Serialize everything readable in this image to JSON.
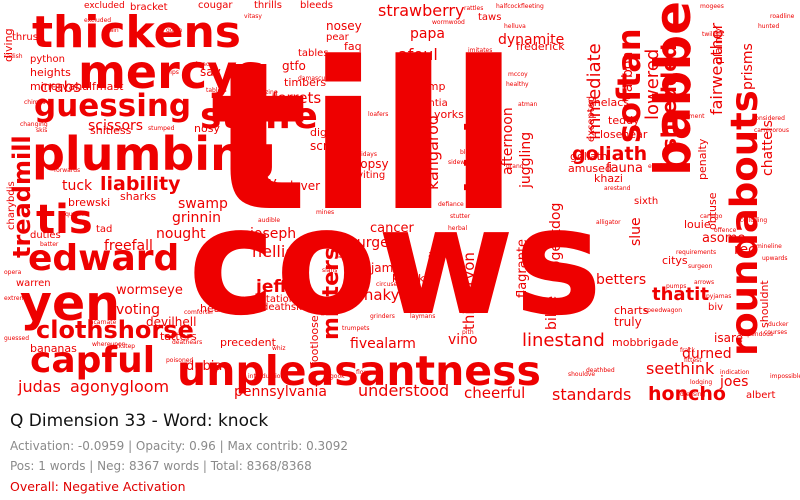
{
  "colors": {
    "cloud": "#ee0000",
    "negative": "#e00000",
    "title": "#111111",
    "info": "#8a8a8a"
  },
  "title": "Q Dimension 33 - Word: knock",
  "stats_line": "Activation: -0.0959 | Opacity: 0.96 | Max contrib: 0.3092",
  "counts_line": "Pos: 1 words | Neg: 8367 words | Total: 8368/8368",
  "overall": "Overall: Negative Activation",
  "words": [
    {
      "text": "till"
    },
    {
      "text": "cows"
    },
    {
      "text": "thickens"
    },
    {
      "text": "mercys"
    },
    {
      "text": "plumbing"
    },
    {
      "text": "guessing"
    },
    {
      "text": "stuffe"
    },
    {
      "text": "babber"
    },
    {
      "text": "roundabouts"
    },
    {
      "text": "unpleasantness"
    },
    {
      "text": "capful"
    },
    {
      "text": "yen"
    },
    {
      "text": "tis"
    },
    {
      "text": "edward"
    },
    {
      "text": "treadmill"
    },
    {
      "text": "softan"
    },
    {
      "text": "bighty"
    },
    {
      "text": "clothshorse"
    },
    {
      "text": "liability"
    },
    {
      "text": "misters"
    },
    {
      "text": "strawberry"
    },
    {
      "text": "shredded"
    },
    {
      "text": "lowered"
    },
    {
      "text": "immediate"
    },
    {
      "text": "goliath"
    },
    {
      "text": "linestand"
    },
    {
      "text": "standards"
    },
    {
      "text": "understood"
    },
    {
      "text": "cheerful"
    },
    {
      "text": "pennsylvania"
    },
    {
      "text": "agonygloom"
    },
    {
      "text": "judas"
    },
    {
      "text": "seethink"
    },
    {
      "text": "honcho"
    },
    {
      "text": "thatit"
    },
    {
      "text": "fairweather"
    },
    {
      "text": "prisms"
    },
    {
      "text": "chattels"
    },
    {
      "text": "plainly"
    },
    {
      "text": "fancyfree"
    },
    {
      "text": "thitheryon"
    },
    {
      "text": "kangaroo"
    },
    {
      "text": "afternoon"
    },
    {
      "text": "juggling"
    },
    {
      "text": "dynamite"
    },
    {
      "text": "papa"
    },
    {
      "text": "afoul"
    },
    {
      "text": "crabs"
    },
    {
      "text": "ferrets"
    },
    {
      "text": "scissors"
    },
    {
      "text": "swamp"
    },
    {
      "text": "tuck"
    },
    {
      "text": "batty"
    },
    {
      "text": "jeff"
    },
    {
      "text": "nellie"
    },
    {
      "text": "joseph"
    },
    {
      "text": "snaky"
    },
    {
      "text": "purge"
    },
    {
      "text": "pajamas"
    },
    {
      "text": "vino"
    },
    {
      "text": "fivealarm"
    },
    {
      "text": "voting"
    },
    {
      "text": "wormseye"
    },
    {
      "text": "freefall"
    },
    {
      "text": "nought"
    },
    {
      "text": "grinnin"
    },
    {
      "text": "durned"
    },
    {
      "text": "joes"
    },
    {
      "text": "bilge"
    },
    {
      "text": "slue"
    },
    {
      "text": "betters"
    },
    {
      "text": "asome"
    },
    {
      "text": "rec"
    },
    {
      "text": "fauna"
    },
    {
      "text": "carbon"
    },
    {
      "text": "dogeatdog"
    },
    {
      "text": "flagrante"
    },
    {
      "text": "cancer"
    },
    {
      "text": "heights"
    },
    {
      "text": "minervahalfmast"
    },
    {
      "text": "scram"
    },
    {
      "text": "digits"
    },
    {
      "text": "slew"
    },
    {
      "text": "lover"
    },
    {
      "text": "dropsy"
    },
    {
      "text": "inviting"
    },
    {
      "text": "gtfo"
    },
    {
      "text": "timbers"
    },
    {
      "text": "paragon"
    },
    {
      "text": "nosey"
    },
    {
      "text": "faq"
    },
    {
      "text": "pear"
    },
    {
      "text": "tables"
    },
    {
      "text": "sav"
    },
    {
      "text": "thrills"
    },
    {
      "text": "bleeds"
    },
    {
      "text": "cougar"
    },
    {
      "text": "bracket"
    },
    {
      "text": "excluded"
    },
    {
      "text": "shitless"
    },
    {
      "text": "tatters"
    },
    {
      "text": "dubia"
    },
    {
      "text": "bananas"
    },
    {
      "text": "devilhell"
    },
    {
      "text": "heal"
    },
    {
      "text": "precedent"
    },
    {
      "text": "expectations"
    },
    {
      "text": "frederick"
    },
    {
      "text": "taws"
    },
    {
      "text": "goliath"
    },
    {
      "text": "closenear"
    },
    {
      "text": "amused"
    },
    {
      "text": "khazi"
    },
    {
      "text": "teddy"
    },
    {
      "text": "truly"
    },
    {
      "text": "charts"
    },
    {
      "text": "isare"
    },
    {
      "text": "mobbrigade"
    },
    {
      "text": "albert"
    },
    {
      "text": "shouldnt"
    },
    {
      "text": "obtuse"
    },
    {
      "text": "penalty"
    },
    {
      "text": "louie"
    },
    {
      "text": "sixth"
    },
    {
      "text": "citys"
    },
    {
      "text": "shelacs"
    },
    {
      "text": "damp"
    },
    {
      "text": "yorks"
    },
    {
      "text": "potentia"
    },
    {
      "text": "diving"
    },
    {
      "text": "thrust"
    },
    {
      "text": "python"
    },
    {
      "text": "warren"
    },
    {
      "text": "tad"
    },
    {
      "text": "duties"
    },
    {
      "text": "charybdis"
    },
    {
      "text": "brewski"
    },
    {
      "text": "sharks"
    },
    {
      "text": "soda"
    },
    {
      "text": "deathskill"
    },
    {
      "text": "nosy"
    },
    {
      "text": "ale"
    },
    {
      "text": "knocks"
    },
    {
      "text": "footloose"
    },
    {
      "text": "excepted"
    },
    {
      "text": "biv"
    }
  ],
  "tiny_words": [
    {
      "text": "excluded"
    },
    {
      "text": "vain"
    },
    {
      "text": "gown"
    },
    {
      "text": "grips"
    },
    {
      "text": "braces"
    },
    {
      "text": "vitasy"
    },
    {
      "text": "tablets"
    },
    {
      "text": "wormwood"
    },
    {
      "text": "rattles"
    },
    {
      "text": "halfcockfleeting"
    },
    {
      "text": "mogees"
    },
    {
      "text": "roadline"
    },
    {
      "text": "radish"
    },
    {
      "text": "chimps"
    },
    {
      "text": "changing"
    },
    {
      "text": "skis"
    },
    {
      "text": "stumped"
    },
    {
      "text": "forwards"
    },
    {
      "text": "squeak"
    },
    {
      "text": "batter"
    },
    {
      "text": "opera"
    },
    {
      "text": "extreme"
    },
    {
      "text": "guessed"
    },
    {
      "text": "whereupon"
    },
    {
      "text": "lockstep"
    },
    {
      "text": "deathears"
    },
    {
      "text": "poisoned"
    },
    {
      "text": "flowers"
    },
    {
      "text": "gook"
    },
    {
      "text": "whiz"
    },
    {
      "text": "introduction"
    },
    {
      "text": "trumpets"
    },
    {
      "text": "grinders"
    },
    {
      "text": "laymans"
    },
    {
      "text": "healthy"
    },
    {
      "text": "anxiety"
    },
    {
      "text": "stutter"
    },
    {
      "text": "defiance"
    },
    {
      "text": "helluva"
    },
    {
      "text": "daddys"
    },
    {
      "text": "imitates"
    },
    {
      "text": "sorrow"
    },
    {
      "text": "mccoy"
    },
    {
      "text": "holidays"
    },
    {
      "text": "bleakest"
    },
    {
      "text": "sidewalk"
    },
    {
      "text": "lodging"
    },
    {
      "text": "dressing"
    },
    {
      "text": "twilight"
    },
    {
      "text": "speedwagon"
    },
    {
      "text": "caringo"
    },
    {
      "text": "stupendous"
    },
    {
      "text": "offence"
    },
    {
      "text": "mineline"
    },
    {
      "text": "colluding"
    },
    {
      "text": "pyjamas"
    },
    {
      "text": "arrows"
    },
    {
      "text": "surgeon"
    },
    {
      "text": "pumps"
    },
    {
      "text": "frack"
    },
    {
      "text": "fittest"
    },
    {
      "text": "courses"
    },
    {
      "text": "ducker"
    },
    {
      "text": "impossible"
    },
    {
      "text": "keys"
    },
    {
      "text": "earthground"
    },
    {
      "text": "arestand"
    },
    {
      "text": "pith"
    },
    {
      "text": "shouldve"
    },
    {
      "text": "loafers"
    },
    {
      "text": "blazing"
    },
    {
      "text": "finegood"
    },
    {
      "text": "damascus"
    },
    {
      "text": "considered"
    },
    {
      "text": "carnivorous"
    },
    {
      "text": "hunted"
    },
    {
      "text": "appointment"
    },
    {
      "text": "nettle"
    },
    {
      "text": "mines"
    },
    {
      "text": "audible"
    },
    {
      "text": "slans"
    },
    {
      "text": "squad"
    },
    {
      "text": "circuses"
    },
    {
      "text": "decided"
    },
    {
      "text": "requirements"
    },
    {
      "text": "alligator"
    },
    {
      "text": "deathbed"
    },
    {
      "text": "incarnate"
    },
    {
      "text": "comforter"
    },
    {
      "text": "grand"
    },
    {
      "text": "atman"
    },
    {
      "text": "nobody"
    },
    {
      "text": "upwards"
    },
    {
      "text": "herbal"
    },
    {
      "text": "indication"
    }
  ]
}
